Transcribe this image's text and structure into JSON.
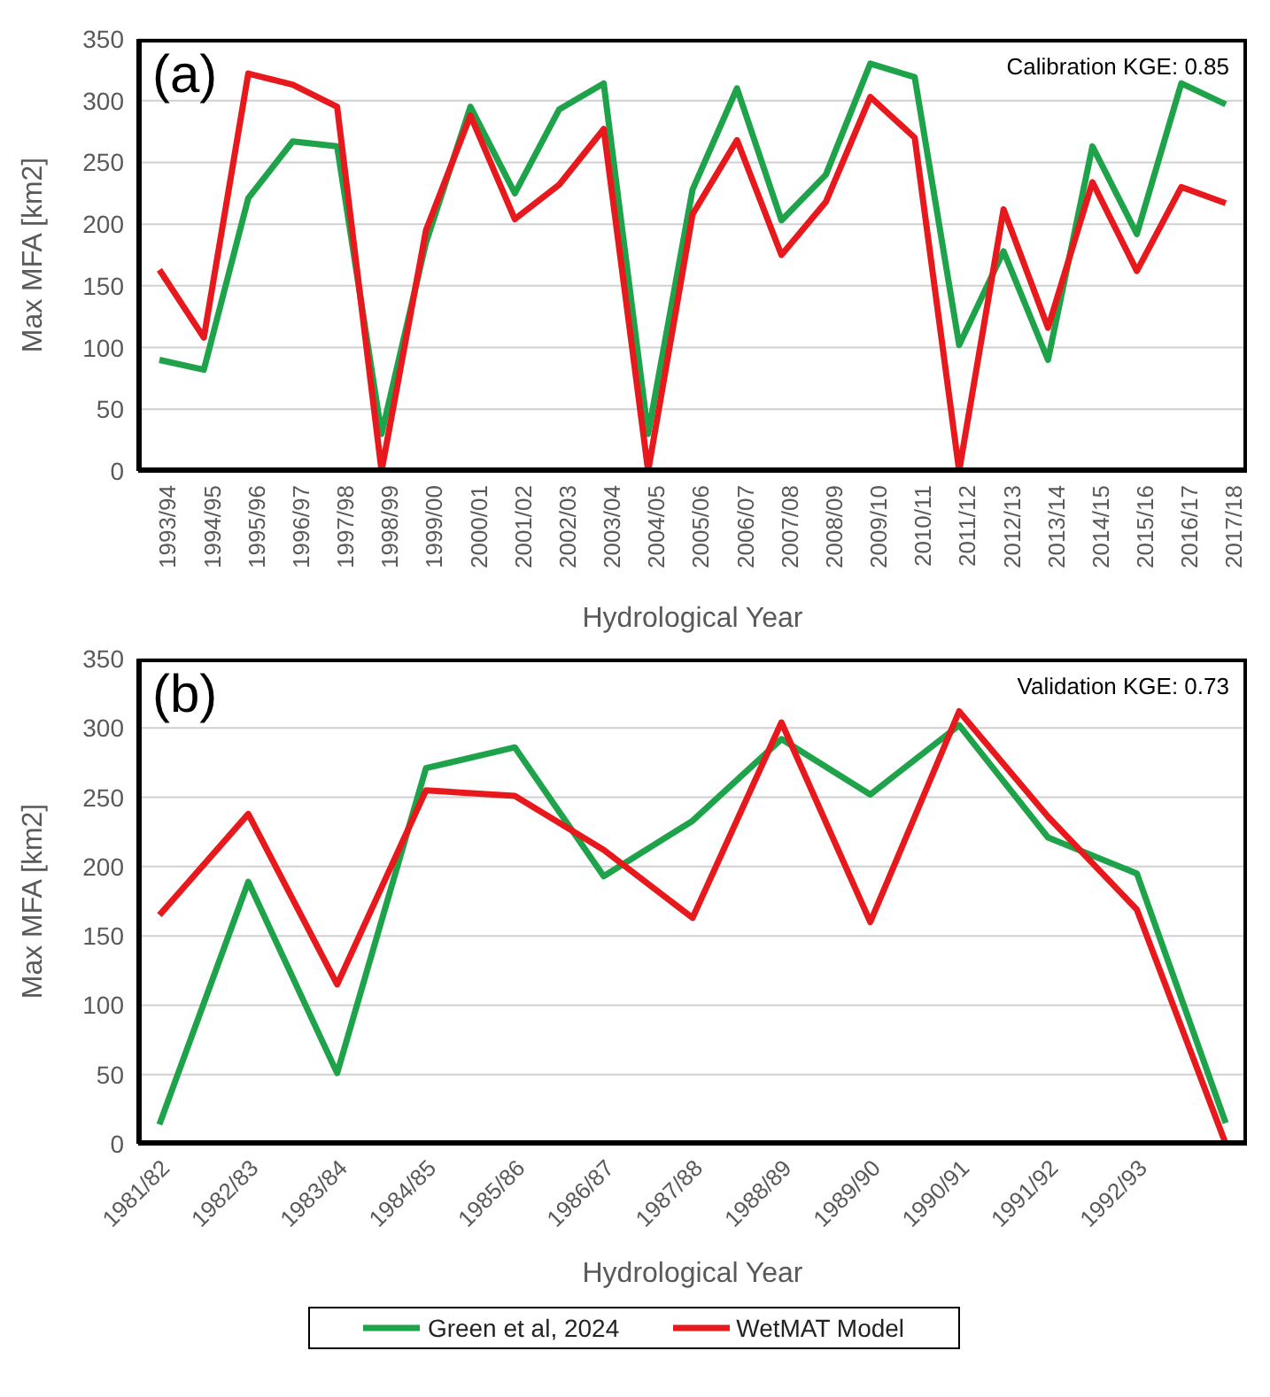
{
  "chart_data": [
    {
      "type": "line",
      "ylabel": "Max MFA [km2]",
      "xlabel": "Hydrological Year",
      "annotations": [
        "(a)",
        "Calibration KGE: 0.85"
      ],
      "categories": [
        "1993/94",
        "1994/95",
        "1995/96",
        "1996/97",
        "1997/98",
        "1998/99",
        "1999/00",
        "2000/01",
        "2001/02",
        "2002/03",
        "2003/04",
        "2004/05",
        "2005/06",
        "2006/07",
        "2007/08",
        "2008/09",
        "2009/10",
        "2010/11",
        "2011/12",
        "2012/13",
        "2013/14",
        "2014/15",
        "2015/16",
        "2016/17",
        "2017/18"
      ],
      "series": [
        {
          "name": "Green et al, 2024",
          "color": "#1ea24a",
          "values": [
            90,
            82,
            221,
            267,
            263,
            30,
            185,
            295,
            225,
            293,
            314,
            30,
            228,
            310,
            203,
            240,
            330,
            319,
            102,
            178,
            90,
            263,
            192,
            314,
            297
          ]
        },
        {
          "name": "WetMAT Model",
          "color": "#e8191c",
          "values": [
            163,
            108,
            322,
            313,
            295,
            0,
            195,
            288,
            204,
            232,
            277,
            0,
            208,
            268,
            175,
            218,
            303,
            270,
            0,
            212,
            116,
            234,
            162,
            230,
            217
          ]
        }
      ],
      "ylim": [
        0,
        350
      ],
      "yticks": [
        0,
        50,
        100,
        150,
        200,
        250,
        300,
        350
      ],
      "grid": "y",
      "marker": "none",
      "line_style": "solid",
      "legend": "bottom"
    },
    {
      "type": "line",
      "ylabel": "Max MFA [km2]",
      "xlabel": "Hydrological Year",
      "annotations": [
        "(b)",
        "Validation KGE: 0.73"
      ],
      "categories": [
        "1981/82",
        "1982/83",
        "1983/84",
        "1984/85",
        "1985/86",
        "1986/87",
        "1987/88",
        "1988/89",
        "1989/90",
        "1990/91",
        "1991/92",
        "1992/93",
        null
      ],
      "series": [
        {
          "color": "#1ea24a",
          "values": [
            14,
            189,
            51,
            271,
            286,
            193,
            233,
            292,
            252,
            302,
            221,
            195,
            15
          ]
        },
        {
          "color": "#e8191c",
          "values": [
            165,
            238,
            115,
            255,
            251,
            212,
            163,
            304,
            160,
            312,
            236,
            169,
            0
          ]
        }
      ],
      "ylim": [
        0,
        350
      ],
      "yticks": [
        0,
        50,
        100,
        150,
        200,
        250,
        300,
        350
      ],
      "grid": "y",
      "marker": "none",
      "line_style": "solid"
    }
  ]
}
